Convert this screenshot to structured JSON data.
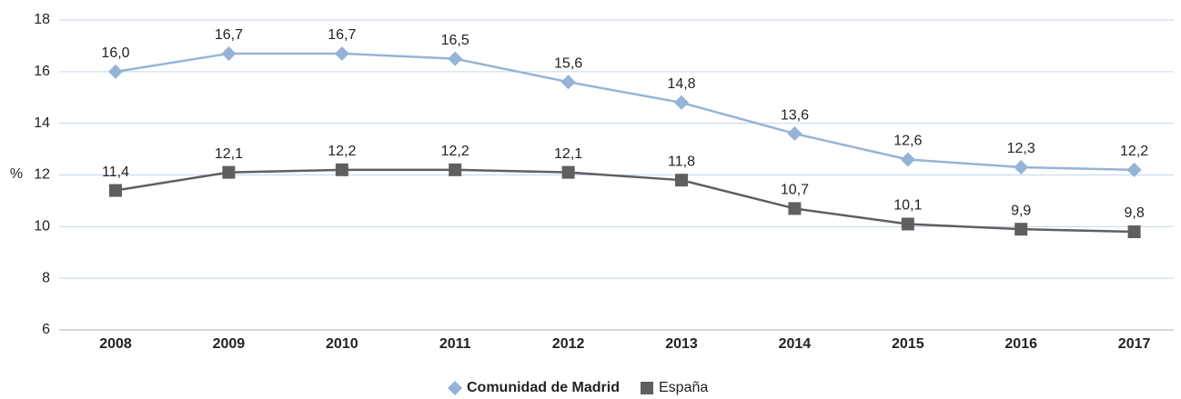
{
  "chart_data": {
    "type": "line",
    "y_label": "%",
    "categories": [
      "2008",
      "2009",
      "2010",
      "2011",
      "2012",
      "2013",
      "2014",
      "2015",
      "2016",
      "2017"
    ],
    "series": [
      {
        "name": "Comunidad de Madrid",
        "color": "#95b3d7",
        "marker": "diamond",
        "values": [
          16.0,
          16.7,
          16.7,
          16.5,
          15.6,
          14.8,
          13.6,
          12.6,
          12.3,
          12.2
        ],
        "value_labels": [
          "16,0",
          "16,7",
          "16,7",
          "16,5",
          "15,6",
          "14,8",
          "13,6",
          "12,6",
          "12,3",
          "12,2"
        ]
      },
      {
        "name": "España",
        "color": "#5f5f5f",
        "marker": "square",
        "values": [
          11.4,
          12.1,
          12.2,
          12.2,
          12.1,
          11.8,
          10.7,
          10.1,
          9.9,
          9.8
        ],
        "value_labels": [
          "11,4",
          "12,1",
          "12,2",
          "12,2",
          "12,1",
          "11,8",
          "10,7",
          "10,1",
          "9,9",
          "9,8"
        ]
      }
    ],
    "ylim": [
      6,
      18
    ],
    "yticks": [
      6,
      8,
      10,
      12,
      14,
      16,
      18
    ],
    "grid": true,
    "legend": "bottom"
  }
}
